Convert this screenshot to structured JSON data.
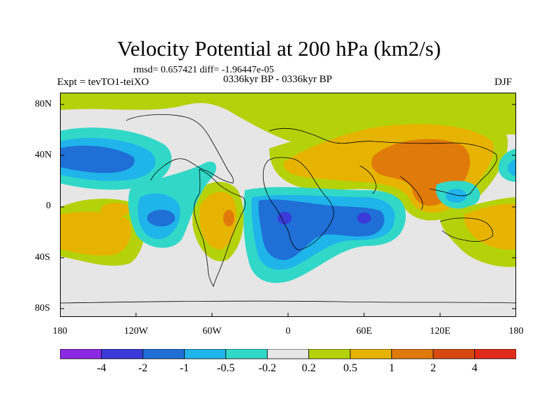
{
  "title": "Velocity Potential at 200 hPa (km2/s)",
  "stats": "rmsd= 0.657421 diff= -1.96447e-05",
  "left_label": "Expt = tevTO1-teiXO",
  "center_label": "0336kyr BP - 0336kyr BP",
  "right_label": "DJF",
  "lat_labels": [
    "80N",
    "40N",
    "0",
    "40S",
    "80S"
  ],
  "lon_labels": [
    "180",
    "120W",
    "60W",
    "0",
    "60E",
    "120E",
    "180"
  ],
  "colorbar": {
    "colors": [
      "#8a2be2",
      "#3a3ad8",
      "#1f6fd6",
      "#1fb4ea",
      "#31d8c8",
      "#e6e6e6",
      "#b4d20a",
      "#e6b400",
      "#e07a0a",
      "#d84a10",
      "#e02a1a"
    ],
    "labels": [
      "-4",
      "-2",
      "-1",
      "-0.5",
      "-0.2",
      "0.2",
      "0.5",
      "1",
      "2",
      "4"
    ]
  }
}
